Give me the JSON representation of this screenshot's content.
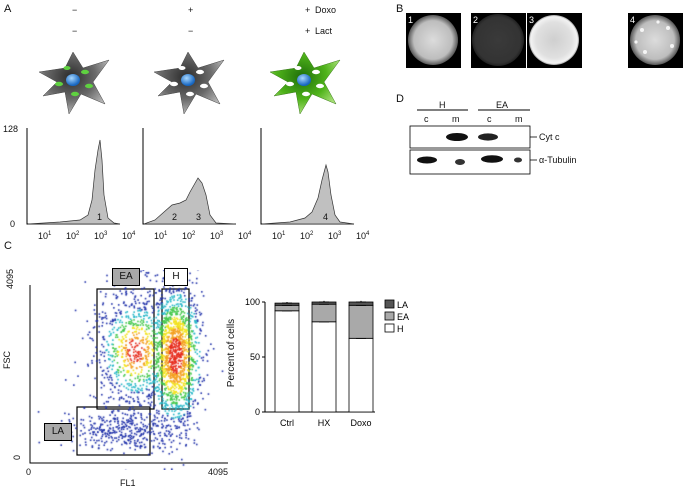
{
  "panels": {
    "A": "A",
    "B": "B",
    "C": "C",
    "D": "D"
  },
  "treatment": {
    "rows": [
      {
        "label": "Doxo",
        "signs": [
          "−",
          "+",
          "+"
        ]
      },
      {
        "label": "Lact",
        "signs": [
          "−",
          "−",
          "+"
        ]
      }
    ]
  },
  "histograms": {
    "y_ticks": [
      "128",
      "0"
    ],
    "x_ticks": [
      {
        "base": "10",
        "exp": "1"
      },
      {
        "base": "10",
        "exp": "2"
      },
      {
        "base": "10",
        "exp": "3"
      },
      {
        "base": "10",
        "exp": "4"
      }
    ],
    "peak_labels": [
      [
        "1"
      ],
      [
        "2",
        "3"
      ],
      [
        "4"
      ]
    ]
  },
  "micrographs": [
    "1",
    "2",
    "3",
    "4"
  ],
  "western": {
    "groups": [
      "H",
      "EA"
    ],
    "lanes": [
      "c",
      "m",
      "c",
      "m"
    ],
    "bands": [
      "Cyt c",
      "α-Tubulin"
    ]
  },
  "scatter": {
    "gates": [
      "EA",
      "H",
      "LA"
    ],
    "ylabel": "FSC",
    "xlabel": "FL1",
    "y_ticks": [
      "4095",
      "0"
    ],
    "x_ticks": [
      "0",
      "4095"
    ]
  },
  "chart_data": {
    "type": "bar",
    "categories": [
      "Ctrl",
      "HX",
      "Doxo"
    ],
    "series": [
      {
        "name": "H",
        "values": [
          92,
          82,
          67
        ]
      },
      {
        "name": "EA",
        "values": [
          5,
          16,
          30
        ]
      },
      {
        "name": "LA",
        "values": [
          2,
          2,
          3
        ]
      }
    ],
    "errors": {
      "H": [
        2,
        2,
        4
      ],
      "EA": [
        1,
        1,
        2
      ],
      "LA": [
        1,
        1,
        1
      ]
    },
    "ylabel": "Percent of cells",
    "ylim": [
      0,
      100
    ],
    "y_ticks": [
      "100",
      "50",
      "0"
    ],
    "legend_position": "right",
    "colors": {
      "H": "#ffffff",
      "EA": "#a9a9a9",
      "LA": "#555555"
    }
  }
}
